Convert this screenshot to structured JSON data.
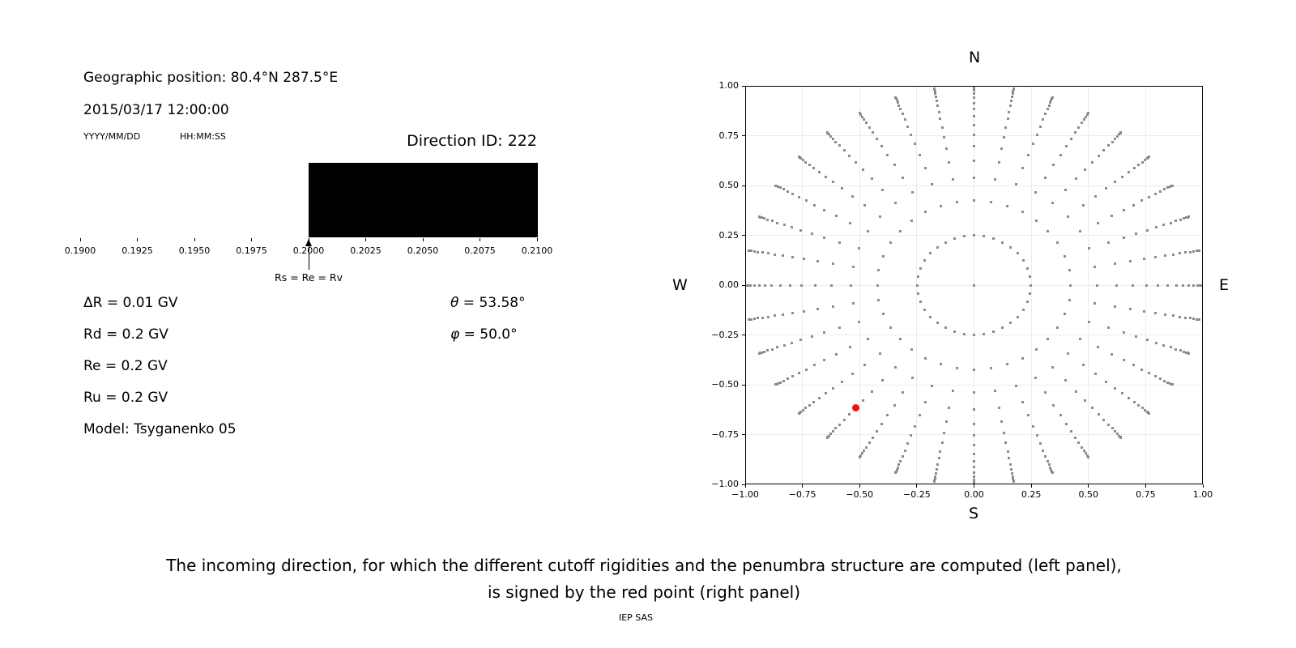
{
  "info_panel": {
    "geographic_position": "Geographic position: 80.4°N 287.5°E",
    "datetime": "2015/03/17 12:00:00",
    "date_format": "YYYY/MM/DD",
    "time_format": "HH:MM:SS",
    "direction_id": "Direction ID: 222",
    "parameters": {
      "delta_r": "ΔR = 0.01 GV",
      "rd": "Rd = 0.2 GV",
      "re": "Re = 0.2 GV",
      "ru": "Ru = 0.2 GV",
      "model": "Model: Tsyganenko 05",
      "theta_symbol": "θ",
      "theta_value": " = 53.58°",
      "phi_symbol": "φ",
      "phi_value": " = 50.0°"
    }
  },
  "caption": {
    "line1": "The incoming direction, for which the different cutoff rigidities and the penumbra structure are computed (left panel),",
    "line2": "is signed by the red point (right panel)",
    "credit": "IEP SAS"
  },
  "colors": {
    "allowed_band": "#ffffff",
    "forbidden_band": "#000000",
    "grid_dot": "#8c8c8c",
    "red_point": "#ee1111",
    "gridline": "#ebebeb",
    "axis": "#000000"
  },
  "chart_data": [
    {
      "type": "bar",
      "name": "penumbra-structure",
      "description": "Penumbra structure bar: white = allowed rigidities, black = forbidden rigidities",
      "xlim": [
        0.19,
        0.21
      ],
      "segments": [
        {
          "from": 0.19,
          "to": 0.2,
          "color": "white",
          "meaning": "allowed"
        },
        {
          "from": 0.2,
          "to": 0.21,
          "color": "black",
          "meaning": "forbidden"
        }
      ],
      "xticks": [
        0.19,
        0.1925,
        0.195,
        0.1975,
        0.2,
        0.2025,
        0.205,
        0.2075,
        0.21
      ],
      "xtick_labels": [
        "0.1900",
        "0.1925",
        "0.1950",
        "0.1975",
        "0.2000",
        "0.2025",
        "0.2050",
        "0.2075",
        "0.2100"
      ],
      "annotation": {
        "x": 0.2,
        "label": "Rs = Re = Rv"
      }
    },
    {
      "type": "scatter",
      "name": "incoming-directions",
      "description": "Grid of incoming directions: radius = sin(zenith angle), 36 azimuths every 10 degrees, plus zenith point at center; selected direction shown in red",
      "xlim": [
        -1,
        1
      ],
      "ylim": [
        -1,
        1
      ],
      "xticks": [
        -1,
        -0.75,
        -0.5,
        -0.25,
        0,
        0.25,
        0.5,
        0.75,
        1
      ],
      "xtick_labels": [
        "−1.00",
        "−0.75",
        "−0.50",
        "−0.25",
        "0.00",
        "0.25",
        "0.50",
        "0.75",
        "1.00"
      ],
      "yticks": [
        1,
        0.75,
        0.5,
        0.25,
        0,
        -0.25,
        -0.5,
        -0.75,
        -1
      ],
      "ytick_labels": [
        "1.00",
        "0.75",
        "0.50",
        "0.25",
        "0.00",
        "−0.25",
        "−0.50",
        "−0.75",
        "−1.00"
      ],
      "compass_labels": {
        "top": "N",
        "bottom": "S",
        "left": "W",
        "right": "E"
      },
      "grid_on": true,
      "azimuth_step_deg": 10,
      "ring_radii": [
        0.2481,
        0.4228,
        0.5367,
        0.6242,
        0.6952,
        0.7545,
        0.8046,
        0.8472,
        0.8833,
        0.9138,
        0.9391,
        0.9596,
        0.9758,
        0.9877,
        0.9956,
        0.9995
      ],
      "center_point": true,
      "red_point": {
        "x": -0.517,
        "y": -0.617,
        "theta_deg": 53.58,
        "phi_deg": 50.0
      }
    }
  ]
}
